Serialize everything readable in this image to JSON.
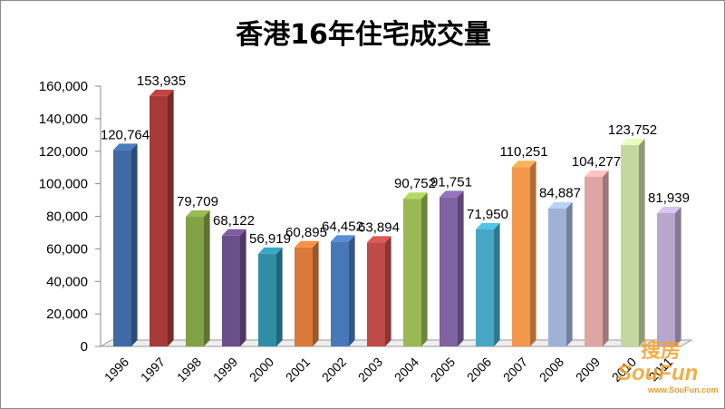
{
  "chart_data": {
    "type": "bar",
    "title": "香港16年住宅成交量",
    "categories": [
      "1996",
      "1997",
      "1998",
      "1999",
      "2000",
      "2001",
      "2002",
      "2003",
      "2004",
      "2005",
      "2006",
      "2007",
      "2008",
      "2009",
      "2010",
      "2011"
    ],
    "values": [
      120764,
      153935,
      79709,
      68122,
      56919,
      60895,
      64452,
      63894,
      90752,
      91751,
      71950,
      110251,
      84887,
      104277,
      123752,
      81939
    ],
    "value_labels": [
      "120,764",
      "153,935",
      "79,709",
      "68,122",
      "56,919",
      "60,895",
      "64,452",
      "63,894",
      "90,752",
      "91,751",
      "71,950",
      "110,251",
      "84,887",
      "104,277",
      "123,752",
      "81,939"
    ],
    "bar_colors": [
      "#3f6aa3",
      "#a63a38",
      "#82a044",
      "#6a4f8a",
      "#2f8ea6",
      "#d9793a",
      "#4978b8",
      "#be4b48",
      "#98b954",
      "#7e62a1",
      "#45a7c4",
      "#f3984b",
      "#9fb2d6",
      "#dba6a4",
      "#c4d7a0",
      "#b7a7cc"
    ],
    "ylim": [
      0,
      160000
    ],
    "yticks": [
      "0",
      "20,000",
      "40,000",
      "60,000",
      "80,000",
      "100,000",
      "120,000",
      "140,000",
      "160,000"
    ],
    "xlabel": "",
    "ylabel": "",
    "grid": false,
    "legend": "none"
  },
  "watermark": {
    "cn": "搜房",
    "en": "SouFun",
    "url": "www.SouFun.com"
  }
}
